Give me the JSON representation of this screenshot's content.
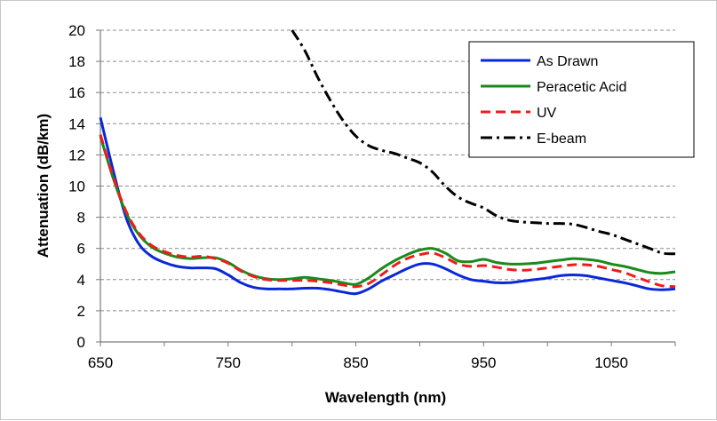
{
  "chart_data": {
    "type": "line",
    "title": "",
    "xlabel": "Wavelength (nm)",
    "ylabel": "Attenuation (dB/km)",
    "xlim": [
      650,
      1100
    ],
    "ylim": [
      0,
      20
    ],
    "x_ticks": [
      650,
      750,
      850,
      950,
      1050
    ],
    "y_ticks": [
      0,
      2,
      4,
      6,
      8,
      10,
      12,
      14,
      16,
      18,
      20
    ],
    "grid": "horizontal dashed",
    "legend_position": "top-right",
    "series": [
      {
        "name": "As Drawn",
        "color": "#0a28d8",
        "style": "solid",
        "x": [
          650,
          660,
          670,
          680,
          690,
          700,
          710,
          720,
          730,
          740,
          750,
          760,
          770,
          780,
          790,
          800,
          810,
          820,
          830,
          840,
          850,
          860,
          870,
          880,
          890,
          900,
          910,
          920,
          930,
          940,
          950,
          960,
          970,
          980,
          990,
          1000,
          1010,
          1020,
          1030,
          1040,
          1050,
          1060,
          1070,
          1080,
          1090,
          1100
        ],
        "y": [
          14.4,
          11.0,
          8.0,
          6.3,
          5.5,
          5.1,
          4.85,
          4.75,
          4.75,
          4.7,
          4.3,
          3.8,
          3.5,
          3.4,
          3.4,
          3.4,
          3.45,
          3.45,
          3.35,
          3.2,
          3.1,
          3.4,
          3.9,
          4.3,
          4.7,
          5.0,
          5.0,
          4.7,
          4.3,
          4.0,
          3.9,
          3.8,
          3.8,
          3.9,
          4.0,
          4.1,
          4.25,
          4.3,
          4.25,
          4.1,
          3.95,
          3.8,
          3.6,
          3.4,
          3.35,
          3.4
        ]
      },
      {
        "name": "Peracetic Acid",
        "color": "#1a8a1a",
        "style": "solid",
        "x": [
          650,
          660,
          670,
          680,
          690,
          700,
          710,
          720,
          730,
          740,
          750,
          760,
          770,
          780,
          790,
          800,
          810,
          820,
          830,
          840,
          850,
          860,
          870,
          880,
          890,
          900,
          910,
          920,
          930,
          940,
          950,
          960,
          970,
          980,
          990,
          1000,
          1010,
          1020,
          1030,
          1040,
          1050,
          1060,
          1070,
          1080,
          1090,
          1100
        ],
        "y": [
          13.2,
          10.5,
          8.3,
          6.9,
          6.1,
          5.7,
          5.45,
          5.35,
          5.4,
          5.4,
          5.1,
          4.6,
          4.25,
          4.05,
          4.0,
          4.05,
          4.15,
          4.05,
          3.95,
          3.8,
          3.7,
          4.1,
          4.7,
          5.2,
          5.6,
          5.9,
          6.0,
          5.7,
          5.2,
          5.15,
          5.3,
          5.1,
          5.0,
          5.0,
          5.05,
          5.15,
          5.25,
          5.35,
          5.3,
          5.2,
          5.0,
          4.85,
          4.65,
          4.45,
          4.4,
          4.5
        ]
      },
      {
        "name": "UV",
        "color": "#ee1c1c",
        "style": "dashed",
        "x": [
          650,
          660,
          670,
          680,
          690,
          700,
          710,
          720,
          730,
          740,
          750,
          760,
          770,
          780,
          790,
          800,
          810,
          820,
          830,
          840,
          850,
          860,
          870,
          880,
          890,
          900,
          910,
          920,
          930,
          940,
          950,
          960,
          970,
          980,
          990,
          1000,
          1010,
          1020,
          1030,
          1040,
          1050,
          1060,
          1070,
          1080,
          1090,
          1100
        ],
        "y": [
          13.3,
          10.6,
          8.4,
          7.0,
          6.2,
          5.8,
          5.55,
          5.45,
          5.5,
          5.35,
          5.05,
          4.55,
          4.2,
          4.0,
          3.95,
          3.95,
          3.95,
          3.9,
          3.8,
          3.65,
          3.55,
          3.75,
          4.3,
          4.9,
          5.35,
          5.6,
          5.7,
          5.4,
          5.0,
          4.85,
          4.9,
          4.8,
          4.65,
          4.6,
          4.65,
          4.75,
          4.85,
          4.95,
          4.95,
          4.85,
          4.65,
          4.45,
          4.15,
          3.85,
          3.6,
          3.55
        ]
      },
      {
        "name": "E-beam",
        "color": "#000000",
        "style": "dash-dot",
        "x": [
          800,
          810,
          820,
          830,
          840,
          850,
          860,
          870,
          880,
          890,
          900,
          910,
          920,
          930,
          940,
          950,
          960,
          970,
          980,
          990,
          1000,
          1010,
          1020,
          1030,
          1040,
          1050,
          1060,
          1070,
          1080,
          1090,
          1100
        ],
        "y": [
          20.0,
          18.7,
          17.0,
          15.5,
          14.2,
          13.2,
          12.6,
          12.3,
          12.1,
          11.8,
          11.5,
          10.9,
          10.0,
          9.3,
          8.9,
          8.6,
          8.1,
          7.8,
          7.7,
          7.65,
          7.6,
          7.6,
          7.55,
          7.35,
          7.1,
          6.9,
          6.6,
          6.3,
          6.0,
          5.7,
          5.65
        ]
      }
    ]
  }
}
